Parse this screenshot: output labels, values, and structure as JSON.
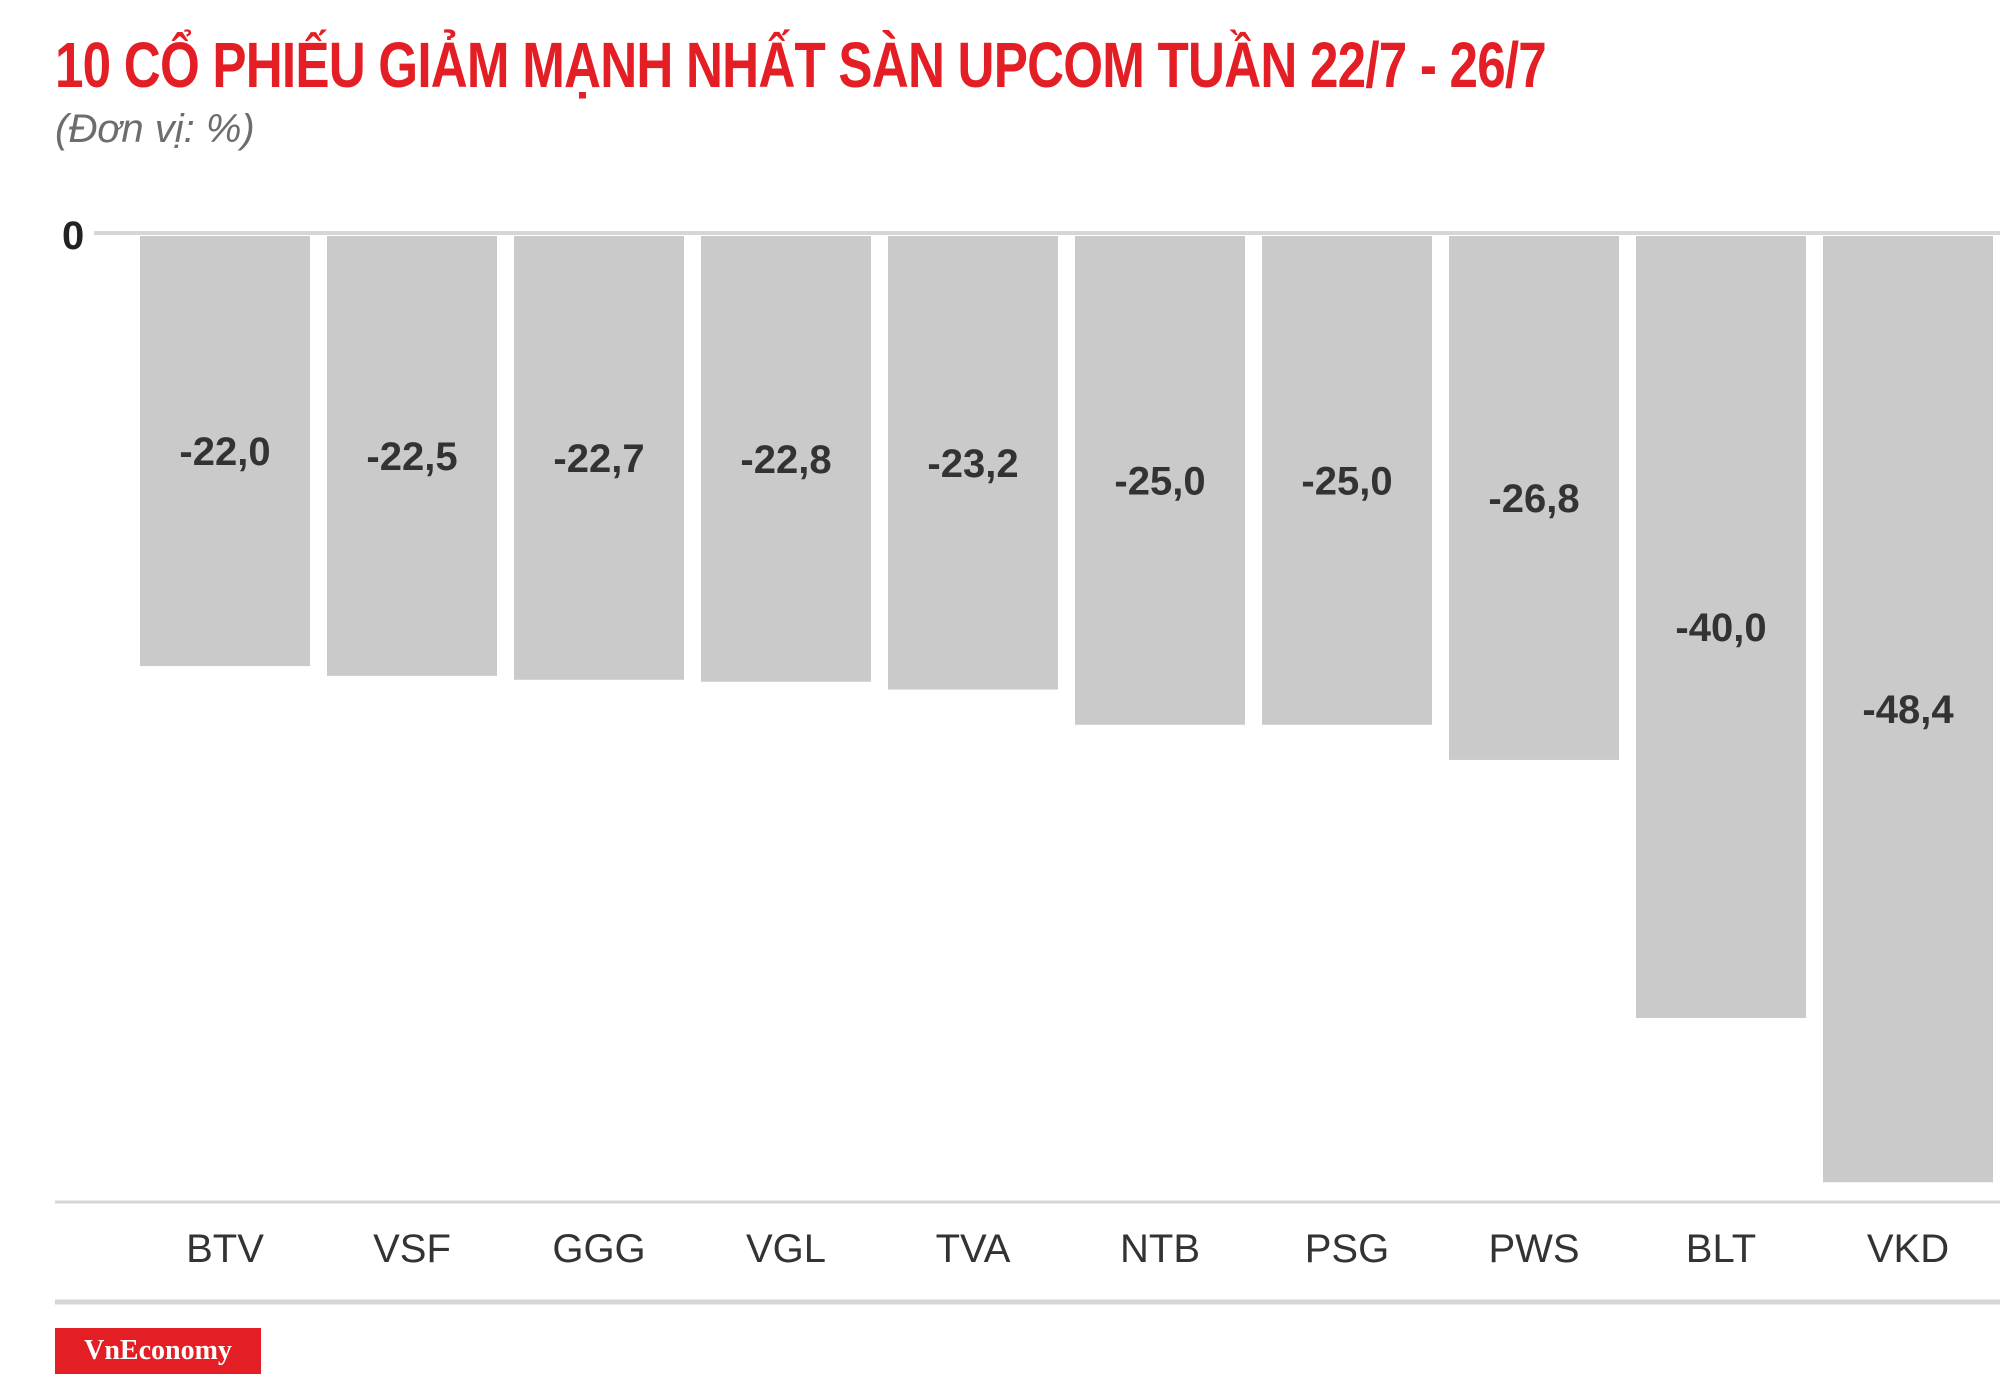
{
  "title": "10 CỔ PHIẾU GIẢM MẠNH NHẤT SÀN UPCOM TUẦN 22/7 - 26/7",
  "subtitle": "(Đơn vị: %)",
  "logo_text": "VnEconomy",
  "colors": {
    "title": "#e31e24",
    "bar": "#cbcacb",
    "axis": "#d7d6d7",
    "label": "#333333",
    "logo_bg": "#e31e24"
  },
  "chart_data": {
    "type": "bar",
    "orientation": "vertical-negative",
    "categories": [
      "BTV",
      "VSF",
      "GGG",
      "VGL",
      "TVA",
      "NTB",
      "PSG",
      "PWS",
      "BLT",
      "VKD"
    ],
    "values": [
      -22.0,
      -22.5,
      -22.7,
      -22.8,
      -23.2,
      -25.0,
      -25.0,
      -26.8,
      -40.0,
      -48.4
    ],
    "value_labels": [
      "-22,0",
      "-22,5",
      "-22,7",
      "-22,8",
      "-23,2",
      "-25,0",
      "-25,0",
      "-26,8",
      "-40,0",
      "-48,4"
    ],
    "zero_label": "0",
    "ylim": [
      -50,
      0
    ],
    "grid": false,
    "legend": "none"
  }
}
